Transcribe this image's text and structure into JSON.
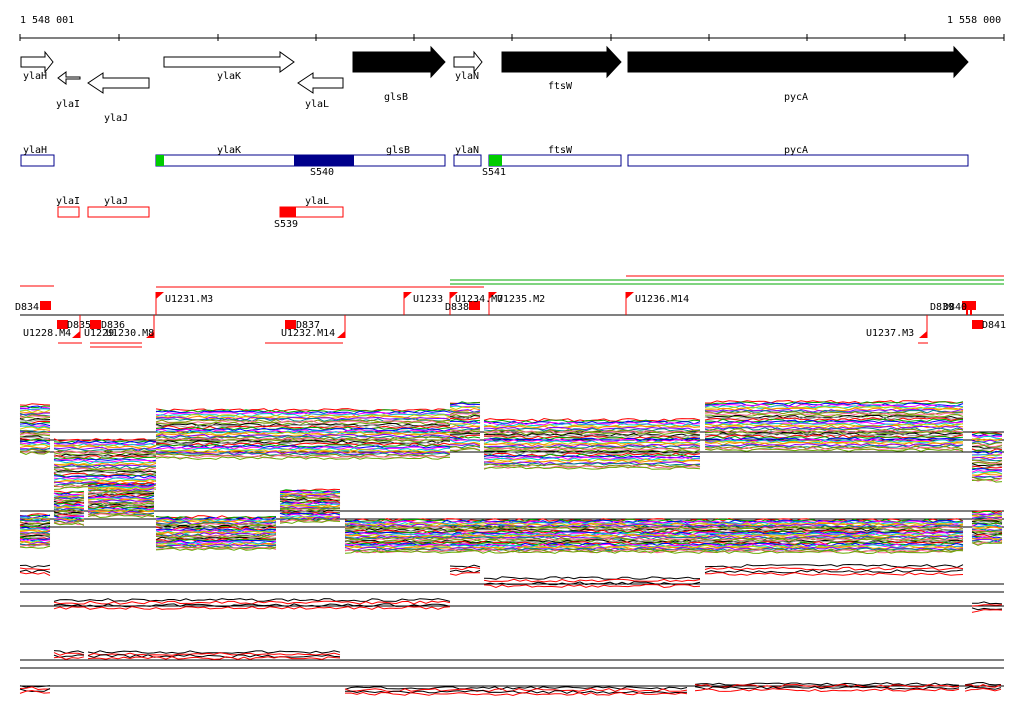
{
  "axis": {
    "start": "1 548 001",
    "end": "1 558 000"
  },
  "genes": [
    {
      "name": "ylaH"
    },
    {
      "name": "ylaI"
    },
    {
      "name": "ylaJ"
    },
    {
      "name": "ylaK"
    },
    {
      "name": "ylaL"
    },
    {
      "name": "glsB"
    },
    {
      "name": "ylaN"
    },
    {
      "name": "ftsW"
    },
    {
      "name": "pycA"
    }
  ],
  "transcript_labels": {
    "fwd": [
      "ylaH",
      "ylaK",
      "glsB",
      "ylaN",
      "ftsW",
      "pycA"
    ],
    "rev": [
      "ylaI",
      "ylaJ",
      "ylaL"
    ],
    "sites": [
      "S540",
      "S541",
      "S539"
    ]
  },
  "feature_labels": {
    "down": [
      "D834",
      "D835",
      "D836",
      "D837",
      "D838",
      "D841"
    ],
    "up": [
      "U1228.M4",
      "U1231.M3",
      "U1232.M14",
      "U1233",
      "U1234.M7",
      "U1235.M2",
      "U1236.M14",
      "U1237.M3"
    ],
    "clipped": [
      "U1229",
      "U1230.M8",
      "D839",
      "D840"
    ]
  },
  "colors": {
    "forward_gene": "#000000",
    "forward_transcript": "#00008b",
    "reverse_transcript": "#ff0000",
    "site_green": "#00cc00",
    "site_blue": "#00008b",
    "site_red": "#ff0000"
  }
}
